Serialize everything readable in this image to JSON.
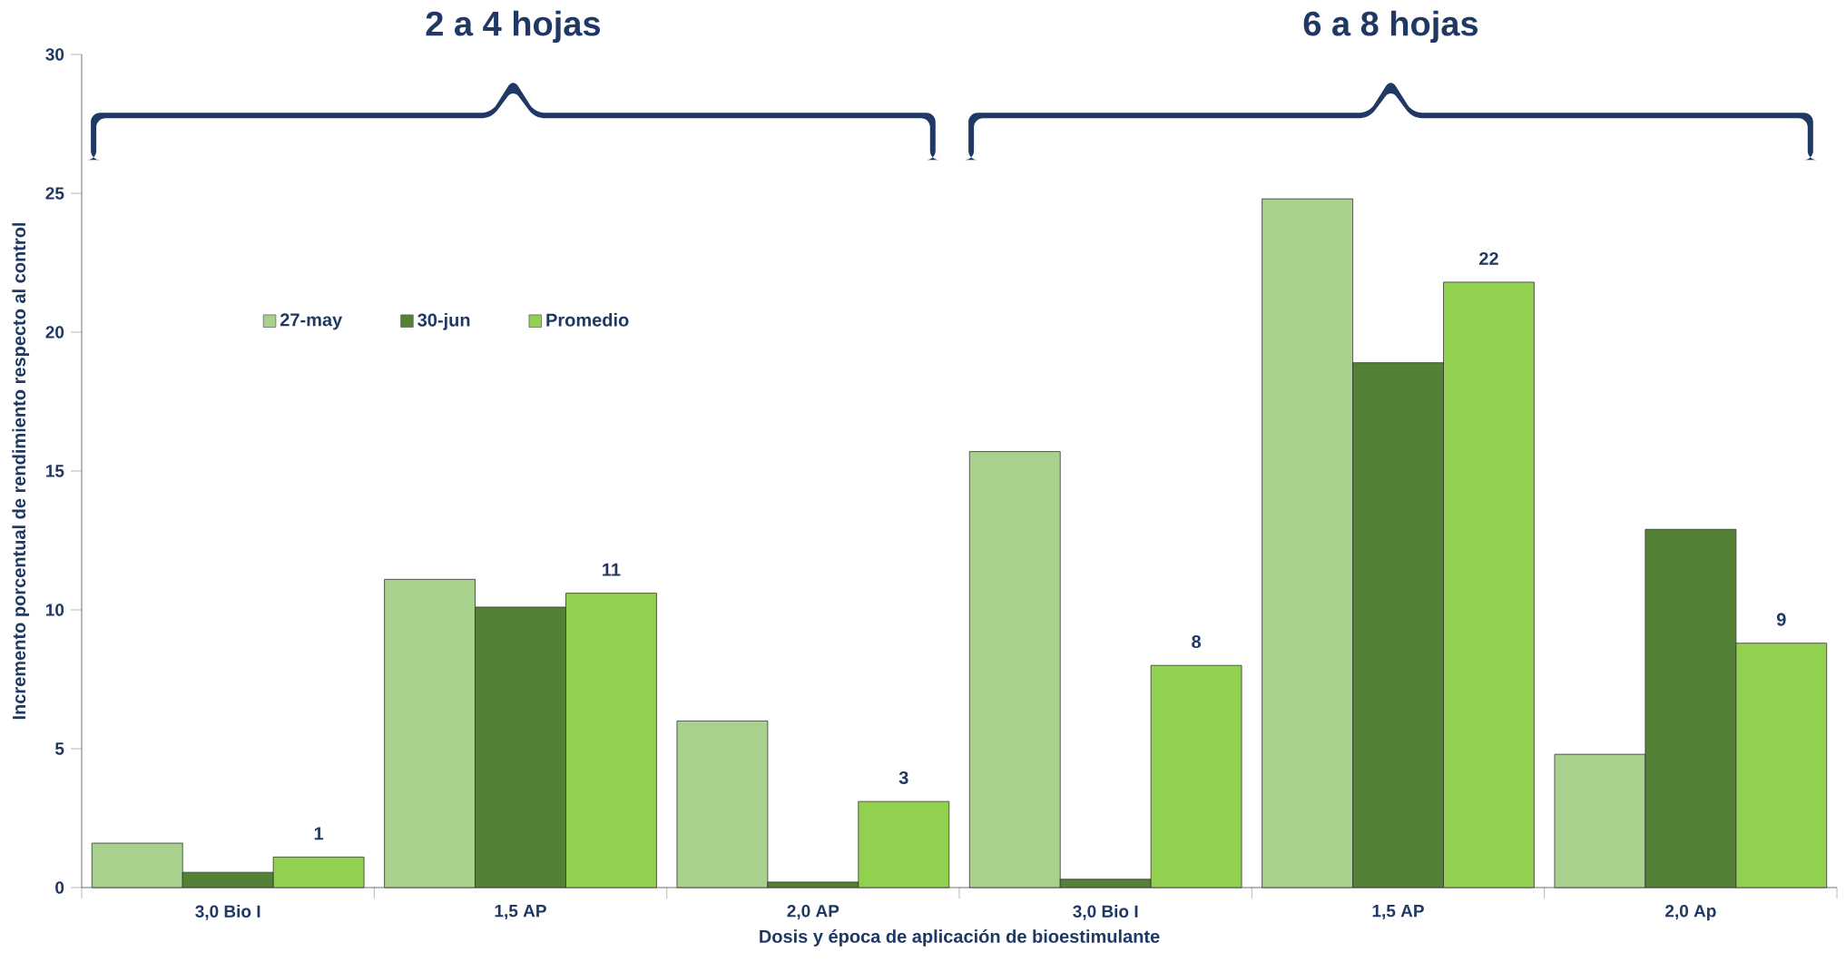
{
  "chart_data": {
    "type": "bar",
    "xlabel": "Dosis y época de aplicación de bioestimulante",
    "ylabel": "Incremento porcentual de rendimiento respecto al control",
    "categories": [
      "3,0 Bio I",
      "1,5 AP",
      "2,0 AP",
      "3,0 Bio I",
      "1,5 AP",
      "2,0 Ap"
    ],
    "series": [
      {
        "name": "27-may",
        "color": "#a9d18e",
        "values": [
          1.6,
          11.1,
          6.0,
          15.7,
          24.8,
          4.8
        ]
      },
      {
        "name": "30-jun",
        "color": "#538135",
        "values": [
          0.55,
          10.1,
          0.2,
          0.3,
          18.9,
          12.9
        ]
      },
      {
        "name": "Promedio",
        "color": "#92d050",
        "values": [
          1.1,
          10.6,
          3.1,
          8.0,
          21.8,
          8.8
        ],
        "value_labels": [
          "1",
          "11",
          "3",
          "8",
          "22",
          "9"
        ]
      }
    ],
    "annotations": [
      "2 a 4 hojas",
      "6 a 8 hojas"
    ],
    "ylim": [
      0,
      30
    ],
    "yticks": [
      0,
      5,
      10,
      15,
      20,
      25,
      30
    ],
    "legend": "top left",
    "grid": false
  }
}
